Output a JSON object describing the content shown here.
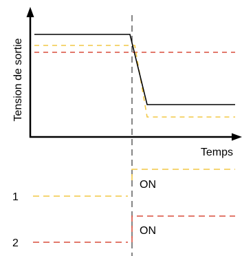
{
  "chart_data": {
    "type": "line",
    "y_axis_label": "Tension de sortie",
    "x_axis_label": "Temps",
    "state_label_on_1": "ON",
    "state_label_on_2": "ON",
    "signal_1_label": "1",
    "signal_2_label": "2",
    "colors": {
      "axis": "#000000",
      "output": "#000000",
      "signal_1": "#f2c744",
      "signal_2": "#d94b3a",
      "event_line": "#333333"
    }
  }
}
